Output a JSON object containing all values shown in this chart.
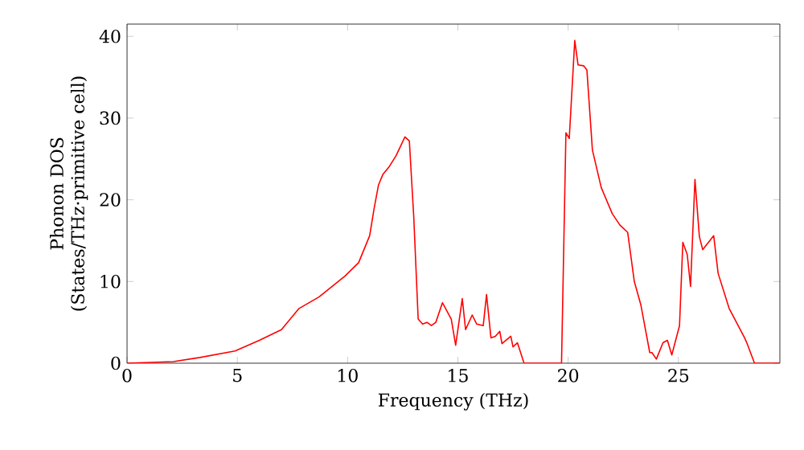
{
  "chart_data": {
    "type": "line",
    "xlabel": "Frequency (THz)",
    "ylabel": "Phonon DOS\n(States/THz·primitive cell)",
    "xlim": [
      0,
      29.6
    ],
    "ylim": [
      0,
      41.5
    ],
    "xticks": [
      0,
      5,
      10,
      15,
      20,
      25
    ],
    "yticks": [
      0,
      10,
      20,
      30,
      40
    ],
    "marker": "none",
    "line_style": "solid",
    "series": [
      {
        "color": "#ff0000",
        "x": [
          0,
          2.1,
          3.3,
          4.9,
          6.0,
          7.0,
          7.4,
          7.8,
          8.7,
          9.9,
          10.5,
          11.0,
          11.2,
          11.4,
          11.6,
          11.9,
          12.2,
          12.6,
          12.8,
          13.0,
          13.2,
          13.4,
          13.6,
          13.8,
          14.0,
          14.3,
          14.7,
          14.9,
          15.2,
          15.35,
          15.65,
          15.85,
          16.15,
          16.3,
          16.5,
          16.7,
          16.9,
          17.0,
          17.4,
          17.5,
          17.7,
          18.0,
          19.7,
          19.9,
          20.05,
          20.3,
          20.45,
          20.7,
          20.85,
          21.1,
          21.5,
          22.0,
          22.35,
          22.7,
          23.0,
          23.3,
          23.7,
          23.8,
          24.0,
          24.3,
          24.5,
          24.7,
          25.05,
          25.2,
          25.4,
          25.55,
          25.75,
          25.95,
          26.1,
          26.6,
          26.8,
          27.3,
          28.0,
          28.1,
          28.45,
          29.6
        ],
        "values": [
          0,
          0.2,
          0.7,
          1.5,
          2.8,
          4.1,
          5.4,
          6.7,
          8.1,
          10.7,
          12.3,
          15.6,
          18.9,
          21.8,
          23.1,
          24.1,
          25.4,
          27.7,
          27.2,
          17.9,
          5.4,
          4.8,
          5.0,
          4.6,
          5.0,
          7.4,
          5.4,
          2.2,
          7.9,
          4.1,
          5.9,
          4.8,
          4.6,
          8.4,
          3.1,
          3.3,
          3.9,
          2.4,
          3.3,
          2.0,
          2.5,
          0,
          0,
          28.2,
          27.5,
          39.5,
          36.5,
          36.4,
          35.9,
          26.1,
          21.5,
          18.3,
          16.9,
          16.0,
          10.0,
          7.1,
          1.3,
          1.3,
          0.5,
          2.5,
          2.8,
          1.0,
          4.6,
          14.8,
          13.3,
          9.4,
          22.5,
          15.5,
          13.9,
          15.6,
          11.0,
          6.7,
          3.1,
          2.5,
          0,
          0
        ]
      }
    ]
  }
}
